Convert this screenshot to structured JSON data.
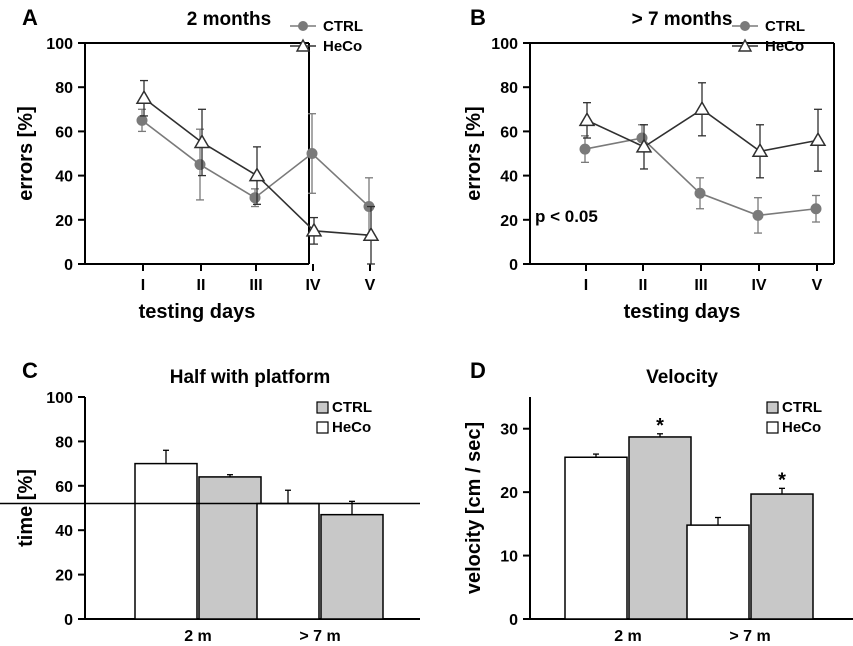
{
  "chart_data": [
    {
      "panel": "A",
      "type": "line",
      "title": "2 months",
      "xlabel": "testing days",
      "ylabel": "errors [%]",
      "categories": [
        "I",
        "II",
        "III",
        "IV",
        "V"
      ],
      "ylim": [
        0,
        100
      ],
      "yticks": [
        0,
        20,
        40,
        60,
        80,
        100
      ],
      "legend": "top-right",
      "series": [
        {
          "name": "CTRL",
          "marker": "circle-filled",
          "color": "#7a7a7a",
          "values": [
            65,
            45,
            30,
            50,
            26
          ],
          "err": [
            5,
            16,
            4,
            18,
            13
          ]
        },
        {
          "name": "HeCo",
          "marker": "triangle-open",
          "color": "#303030",
          "values": [
            75,
            55,
            40,
            15,
            13
          ],
          "err": [
            8,
            15,
            13,
            6,
            13
          ]
        }
      ],
      "annotations": []
    },
    {
      "panel": "B",
      "type": "line",
      "title": "> 7 months",
      "xlabel": "testing days",
      "ylabel": "errors [%]",
      "categories": [
        "I",
        "II",
        "III",
        "IV",
        "V"
      ],
      "ylim": [
        0,
        100
      ],
      "yticks": [
        0,
        20,
        40,
        60,
        80,
        100
      ],
      "legend": "top-right",
      "series": [
        {
          "name": "CTRL",
          "marker": "circle-filled",
          "color": "#7a7a7a",
          "values": [
            52,
            57,
            32,
            22,
            25
          ],
          "err": [
            6,
            6,
            7,
            8,
            6
          ]
        },
        {
          "name": "HeCo",
          "marker": "triangle-open",
          "color": "#303030",
          "values": [
            65,
            53,
            70,
            51,
            56
          ],
          "err": [
            8,
            10,
            12,
            12,
            14
          ]
        }
      ],
      "annotations": [
        "p < 0.05"
      ]
    },
    {
      "panel": "C",
      "type": "bar",
      "title": "Half with platform",
      "xlabel": "",
      "ylabel": "time [%]",
      "categories": [
        "2 m",
        "> 7 m"
      ],
      "ylim": [
        0,
        100
      ],
      "yticks": [
        0,
        20,
        40,
        60,
        80,
        100
      ],
      "legend": "top-right",
      "reference_line": 52,
      "series": [
        {
          "name": "HeCo",
          "fill": "#ffffff",
          "values": [
            70,
            52
          ],
          "err": [
            6,
            6
          ]
        },
        {
          "name": "CTRL",
          "fill": "#c8c8c8",
          "values": [
            64,
            47
          ],
          "err": [
            1,
            6
          ]
        }
      ],
      "significance": []
    },
    {
      "panel": "D",
      "type": "bar",
      "title": "Velocity",
      "xlabel": "",
      "ylabel": "velocity [cm / sec]",
      "categories": [
        "2 m",
        "> 7 m"
      ],
      "ylim": [
        0,
        35
      ],
      "yticks": [
        0,
        10,
        20,
        30
      ],
      "legend": "top-right",
      "series": [
        {
          "name": "HeCo",
          "fill": "#ffffff",
          "values": [
            25.5,
            14.8
          ],
          "err": [
            0.5,
            1.2
          ]
        },
        {
          "name": "CTRL",
          "fill": "#c8c8c8",
          "values": [
            28.7,
            19.7
          ],
          "err": [
            0.5,
            0.9
          ]
        }
      ],
      "significance": [
        "*",
        "*"
      ]
    }
  ]
}
